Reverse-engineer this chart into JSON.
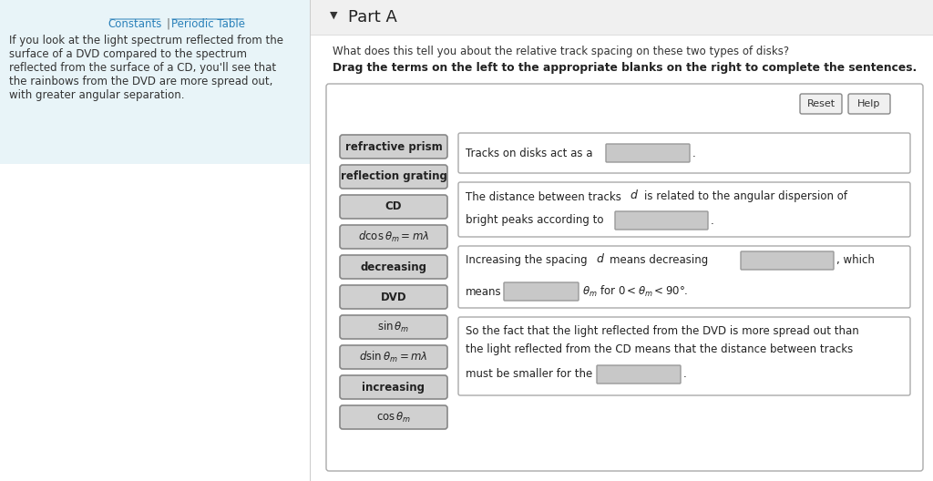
{
  "bg_color": "#ffffff",
  "left_panel_bg": "#e8f4f8",
  "constants_text": "Constants",
  "periodic_text": "Periodic Table",
  "link_color": "#2980b9",
  "left_body_text": "If you look at the light spectrum reflected from the\nsurface of a DVD compared to the spectrum\nreflected from the surface of a CD, you'll see that\nthe rainbows from the DVD are more spread out,\nwith greater angular separation.",
  "part_a_title": "Part A",
  "question_text": "What does this tell you about the relative track spacing on these two types of disks?",
  "instruction_text": "Drag the terms on the left to the appropriate blanks on the right to complete the sentences.",
  "drag_items": [
    "refractive prism",
    "reflection grating",
    "CD",
    "$d\\cos\\theta_m = m\\lambda$",
    "decreasing",
    "DVD",
    "$\\sin\\theta_m$",
    "$d\\sin\\theta_m = m\\lambda$",
    "increasing",
    "$\\cos\\theta_m$"
  ],
  "drag_items_bold": [
    "refractive prism",
    "reflection grating",
    "decreasing",
    "increasing",
    "DVD",
    "CD"
  ],
  "panel_border_color": "#aaaaaa",
  "btn_bg": "#d0d0d0",
  "btn_border": "#888888",
  "blank_bg": "#c8c8c8",
  "blank_border": "#999999"
}
